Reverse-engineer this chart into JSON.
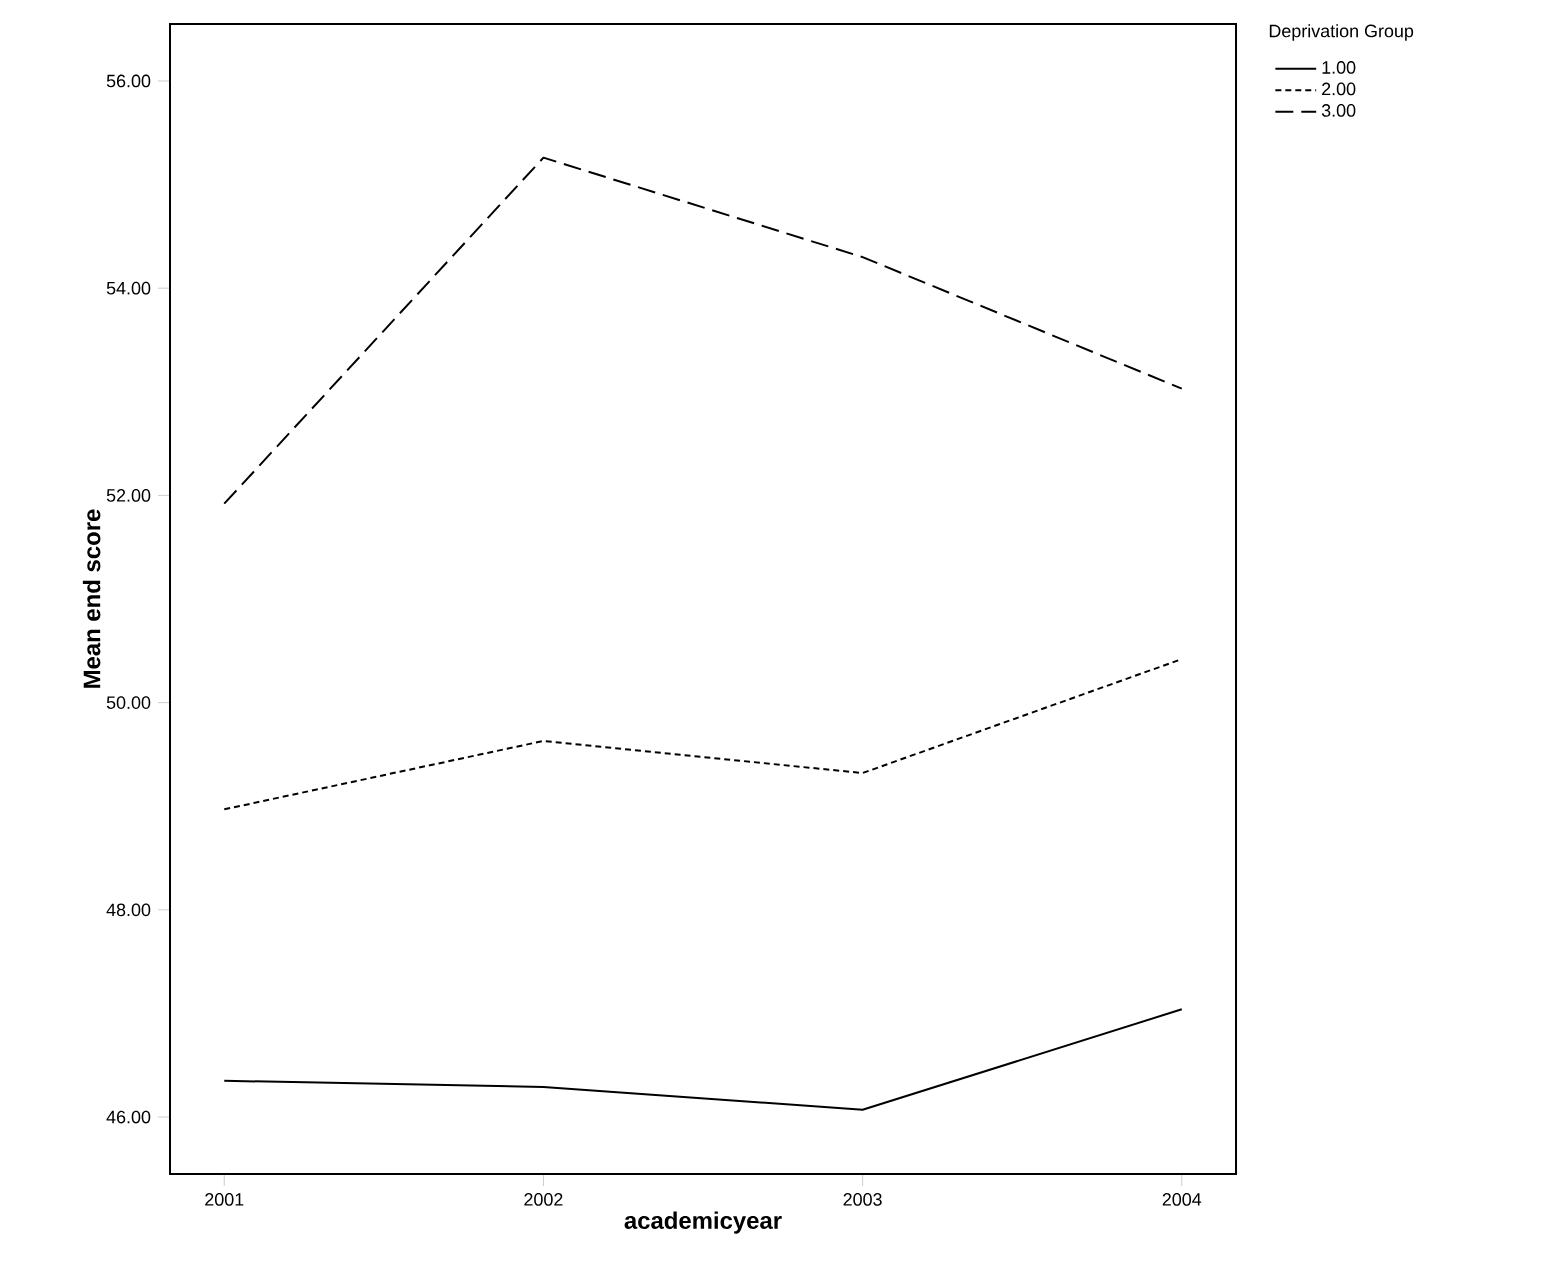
{
  "chart_data": {
    "type": "line",
    "xlabel": "academicyear",
    "ylabel": "Mean end score",
    "legend_title": "Deprivation Group",
    "legend": "top right",
    "x": [
      2001,
      2002,
      2003,
      2004
    ],
    "xlim": [
      2000.83,
      2004.17
    ],
    "xticks": [
      2001,
      2002,
      2003,
      2004
    ],
    "ylim": [
      45.45,
      56.55
    ],
    "yticks": [
      {
        "value": 46,
        "label": "46.00"
      },
      {
        "value": 48,
        "label": "48.00"
      },
      {
        "value": 50,
        "label": "50.00"
      },
      {
        "value": 52,
        "label": "52.00"
      },
      {
        "value": 54,
        "label": "54.00"
      },
      {
        "value": 56,
        "label": "56.00"
      }
    ],
    "series": [
      {
        "name": "1.00",
        "color": "#000000",
        "line_style": "solid",
        "values": [
          46.35,
          46.29,
          46.07,
          47.04
        ]
      },
      {
        "name": "2.00",
        "color": "#000000",
        "line_style": "dotted",
        "values": [
          48.97,
          49.63,
          49.32,
          50.42
        ]
      },
      {
        "name": "3.00",
        "color": "#000000",
        "line_style": "dashed",
        "values": [
          51.92,
          55.26,
          54.3,
          53.03
        ]
      }
    ]
  }
}
